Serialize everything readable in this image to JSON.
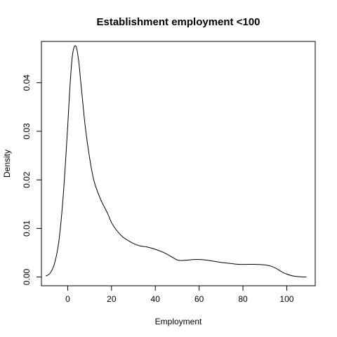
{
  "chart_data": {
    "type": "line",
    "title": "Establishment employment <100",
    "xlabel": "Employment",
    "ylabel": "Density",
    "xlim": [
      -12,
      113
    ],
    "ylim": [
      -0.0018,
      0.0485
    ],
    "x_ticks": [
      0,
      20,
      40,
      60,
      80,
      100
    ],
    "y_ticks": [
      0.0,
      0.01,
      0.02,
      0.03,
      0.04
    ],
    "x_tick_labels": [
      "0",
      "20",
      "40",
      "60",
      "80",
      "100"
    ],
    "y_tick_labels": [
      "0.00",
      "0.01",
      "0.02",
      "0.03",
      "0.04"
    ],
    "grid": false,
    "legend": "none",
    "line_color": "#000000",
    "series": [
      {
        "x": [
          -10,
          -8,
          -6,
          -4,
          -2,
          0,
          1,
          2,
          3,
          4,
          5,
          6,
          8,
          10,
          12,
          15,
          18,
          20,
          22,
          25,
          28,
          30,
          33,
          36,
          40,
          44,
          48,
          50,
          52,
          55,
          58,
          60,
          63,
          66,
          70,
          74,
          78,
          82,
          86,
          90,
          93,
          95,
          98,
          100,
          103,
          106,
          109
        ],
        "y": [
          0.0002,
          0.0008,
          0.0028,
          0.0075,
          0.017,
          0.031,
          0.039,
          0.045,
          0.0474,
          0.0472,
          0.0445,
          0.04,
          0.031,
          0.0245,
          0.0198,
          0.016,
          0.0133,
          0.0112,
          0.0098,
          0.0083,
          0.0074,
          0.0069,
          0.0064,
          0.0062,
          0.0057,
          0.005,
          0.004,
          0.0035,
          0.0034,
          0.0035,
          0.0036,
          0.0036,
          0.0035,
          0.0033,
          0.003,
          0.0028,
          0.0026,
          0.0026,
          0.0026,
          0.0025,
          0.0022,
          0.0018,
          0.001,
          0.0006,
          0.0002,
          5e-05,
          0.0
        ]
      }
    ]
  }
}
